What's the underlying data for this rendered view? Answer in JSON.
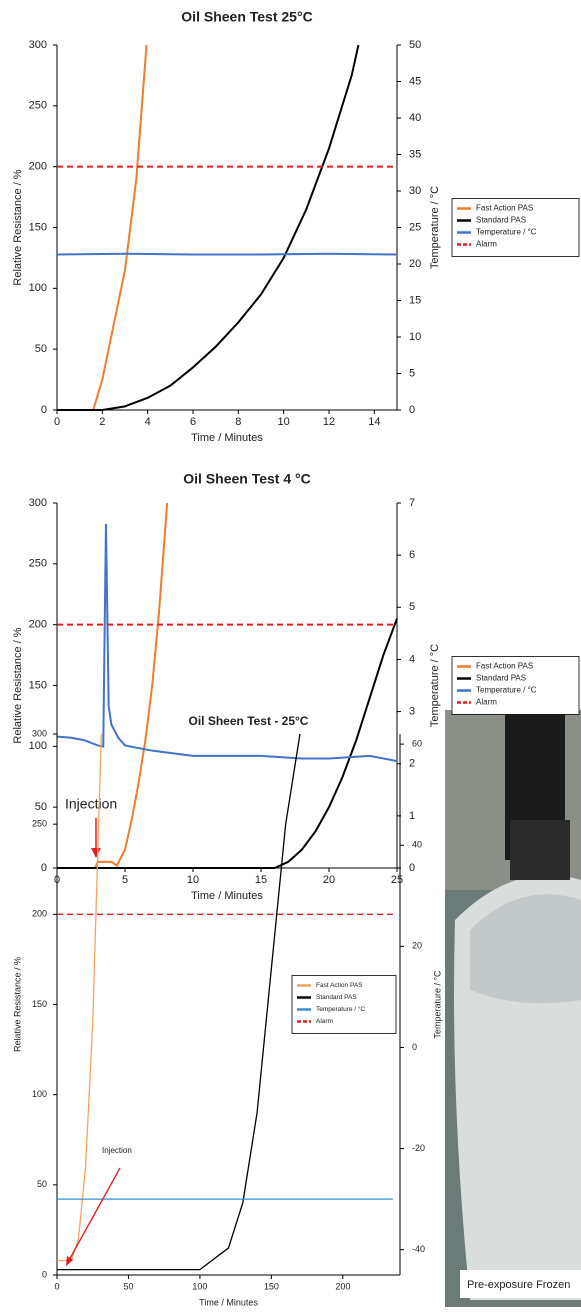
{
  "chart_data": [
    {
      "type": "line",
      "title": "Oil Sheen Test 25°C",
      "xlabel": "Time / Minutes",
      "ylabel": "Relative Resistance / %",
      "y2label": "Temperature / °C",
      "xlim": [
        0,
        15
      ],
      "xticks": [
        0,
        2,
        4,
        6,
        8,
        10,
        12,
        14
      ],
      "ylim": [
        0,
        300
      ],
      "yticks": [
        0,
        50,
        100,
        150,
        200,
        250,
        300
      ],
      "y2lim": [
        0,
        50
      ],
      "y2ticks": [
        0,
        5,
        10,
        15,
        20,
        25,
        30,
        35,
        40,
        45,
        50
      ],
      "legend": "right",
      "series": [
        {
          "name": "Fast Action PAS",
          "color": "#ed7d31",
          "x": [
            0,
            1.6,
            2,
            2.5,
            3,
            3.5,
            3.95
          ],
          "values": [
            0,
            0,
            25,
            70,
            115,
            190,
            300
          ]
        },
        {
          "name": "Standard PAS",
          "color": "#000000",
          "x": [
            0,
            2,
            3,
            4,
            5,
            6,
            7,
            8,
            9,
            10,
            11,
            12,
            13,
            13.3
          ],
          "values": [
            0,
            0,
            3,
            10,
            20,
            35,
            52,
            72,
            95,
            125,
            165,
            215,
            275,
            300
          ]
        },
        {
          "name": "Temperature / °C",
          "color": "#4472c4",
          "axis": "y2",
          "x": [
            0,
            3,
            6,
            9,
            12,
            15
          ],
          "values": [
            21.3,
            21.4,
            21.3,
            21.3,
            21.4,
            21.3
          ]
        },
        {
          "name": "Alarm",
          "color": "#e02020",
          "dash": true,
          "x": [
            0,
            15
          ],
          "values": [
            200,
            200
          ]
        }
      ]
    },
    {
      "type": "line",
      "title": "Oil Sheen Test 4 °C",
      "xlabel": "Time / Minutes",
      "ylabel": "Relative Resistance / %",
      "y2label": "Temperature / °C",
      "annotation": "Injection",
      "xlim": [
        0,
        25
      ],
      "xticks": [
        0,
        5,
        10,
        15,
        20,
        25
      ],
      "ylim": [
        0,
        300
      ],
      "yticks": [
        0,
        50,
        100,
        150,
        200,
        250,
        300
      ],
      "y2lim": [
        0,
        7
      ],
      "y2ticks": [
        0,
        1,
        2,
        3,
        4,
        5,
        6,
        7
      ],
      "legend": "right",
      "series": [
        {
          "name": "Fast Action PAS",
          "color": "#ed7d31",
          "x": [
            0,
            2.8,
            3,
            4,
            4.4,
            5,
            5.5,
            6,
            6.5,
            7,
            7.5,
            8.1
          ],
          "values": [
            0,
            0,
            5,
            5,
            2,
            15,
            40,
            70,
            105,
            150,
            210,
            300
          ]
        },
        {
          "name": "Standard PAS",
          "color": "#000000",
          "x": [
            0,
            16,
            17,
            18,
            19,
            20,
            21,
            22,
            23,
            24,
            25
          ],
          "values": [
            0,
            0,
            5,
            15,
            30,
            50,
            75,
            105,
            140,
            175,
            205
          ]
        },
        {
          "name": "Temperature / °C",
          "color": "#4472c4",
          "axis": "y2",
          "x": [
            0,
            1,
            2,
            3,
            3.4,
            3.6,
            3.8,
            4,
            4.5,
            5,
            7,
            10,
            13,
            15,
            18,
            20,
            23,
            25
          ],
          "values": [
            2.52,
            2.5,
            2.45,
            2.35,
            2.33,
            6.6,
            3.1,
            2.75,
            2.5,
            2.35,
            2.25,
            2.15,
            2.15,
            2.15,
            2.1,
            2.1,
            2.15,
            2.05
          ]
        },
        {
          "name": "Alarm",
          "color": "#e02020",
          "dash": true,
          "x": [
            0,
            25
          ],
          "values": [
            200,
            200
          ]
        }
      ]
    },
    {
      "type": "line",
      "title": "Oil Sheen Test - 25°C",
      "xlabel": "Time / Minutes",
      "ylabel": "Relative Resistance / %",
      "y2label": "Temperature / °C",
      "annotation": "Injection",
      "xlim": [
        0,
        240
      ],
      "xticks": [
        0,
        50,
        100,
        150,
        200
      ],
      "ylim": [
        0,
        300
      ],
      "yticks": [
        0,
        50,
        100,
        150,
        200,
        250,
        300
      ],
      "y2lim": [
        -45,
        62
      ],
      "y2ticks": [
        -40,
        -20,
        0,
        20,
        40,
        60
      ],
      "legend": "center right",
      "series": [
        {
          "name": "Fast Action PAS",
          "color": "#f4a460",
          "x": [
            0,
            10,
            15,
            20,
            25,
            28,
            31
          ],
          "values": [
            8,
            8,
            20,
            60,
            140,
            220,
            300
          ]
        },
        {
          "name": "Standard PAS",
          "color": "#000000",
          "x": [
            0,
            100,
            120,
            130,
            140,
            150,
            160,
            170
          ],
          "values": [
            3,
            3,
            15,
            40,
            90,
            170,
            250,
            300
          ]
        },
        {
          "name": "Temperature / °C",
          "color": "#3a8fd0",
          "axis": "y2",
          "x": [
            0,
            235
          ],
          "values": [
            -30,
            -30
          ]
        },
        {
          "name": "Alarm",
          "color": "#e02020",
          "dash": true,
          "x": [
            0,
            235
          ],
          "values": [
            200,
            200
          ]
        }
      ]
    }
  ],
  "photo": {
    "caption": "Pre-exposure Frozen"
  }
}
